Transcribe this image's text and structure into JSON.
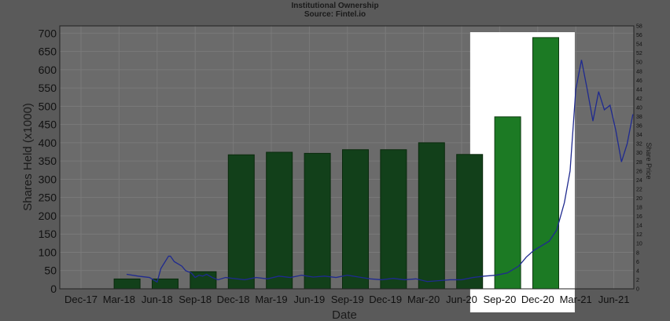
{
  "chart_data": {
    "type": "bar",
    "title": "Institutional Ownership",
    "subtitle": "Source: Fintel.io",
    "xlabel": "Date",
    "ylabel": "Shares Held (x1000)",
    "y2label": "Share Price",
    "ylim": [
      0,
      720
    ],
    "y2lim": [
      0,
      58
    ],
    "yticks": [
      0,
      50,
      100,
      150,
      200,
      250,
      300,
      350,
      400,
      450,
      500,
      550,
      600,
      650,
      700
    ],
    "y2ticks": [
      0,
      2,
      4,
      6,
      8,
      10,
      12,
      14,
      16,
      18,
      20,
      22,
      24,
      26,
      28,
      30,
      32,
      34,
      36,
      38,
      40,
      42,
      44,
      46,
      48,
      50,
      52,
      54,
      56,
      58
    ],
    "xticks": [
      "Dec-17",
      "Mar-18",
      "Jun-18",
      "Sep-18",
      "Dec-18",
      "Mar-19",
      "Jun-19",
      "Sep-19",
      "Dec-19",
      "Mar-20",
      "Jun-20",
      "Sep-20",
      "Dec-20",
      "Mar-21",
      "Jun-21"
    ],
    "bar_positions": [
      1,
      2,
      3,
      4,
      5,
      6,
      7,
      8,
      9,
      10,
      11,
      12,
      13
    ],
    "bar_values": [
      27,
      27,
      47,
      367,
      374,
      371,
      381,
      381,
      400,
      368,
      471,
      688
    ],
    "bar_x": [
      1.5,
      2.5,
      3.5,
      4.5,
      5.5,
      6.5,
      7.5,
      8.5,
      9.5,
      10.5,
      11.5,
      12.5
    ],
    "series": [
      {
        "values_x": [
          1.2,
          1.5,
          1.8,
          2.0,
          2.1,
          2.3,
          2.35,
          2.45,
          2.55,
          2.65,
          2.75,
          2.9,
          3.0,
          3.1,
          3.2,
          3.3,
          3.45,
          3.6,
          3.8,
          4.0,
          4.3,
          4.6,
          4.9,
          5.2,
          5.5,
          5.8,
          6.1,
          6.4,
          6.7,
          7.0,
          7.3,
          7.6,
          7.9,
          8.2,
          8.5,
          8.8,
          9.1,
          9.4,
          9.7,
          10.0,
          10.3,
          10.6,
          10.9,
          11.2,
          11.5,
          11.7,
          11.9,
          12.1,
          12.3,
          12.5,
          12.7,
          12.85,
          13.0,
          13.15,
          13.3,
          13.45,
          13.6,
          13.75,
          13.9,
          14.05,
          14.2,
          14.35,
          14.5
        ],
        "values_y": [
          3.2,
          2.8,
          2.5,
          1.5,
          4.5,
          7.2,
          7.2,
          6.0,
          5.5,
          5.0,
          4.0,
          3.5,
          2.5,
          3.0,
          2.8,
          3.2,
          2.5,
          2.0,
          2.5,
          2.3,
          2.0,
          2.5,
          2.2,
          2.8,
          2.5,
          3.0,
          2.6,
          2.8,
          2.5,
          3.0,
          2.6,
          2.2,
          2.0,
          2.3,
          2.0,
          2.2,
          1.6,
          1.8,
          2.0,
          2.0,
          2.5,
          2.8,
          3.0,
          3.5,
          5.0,
          7.0,
          8.5,
          9.5,
          10.5,
          13.0,
          19.0,
          26.0,
          44.0,
          50.5,
          44.0,
          37.0,
          43.5,
          39.5,
          40.5,
          35.0,
          28.0,
          32.0,
          38.5
        ]
      }
    ],
    "highlight_range": [
      10.7,
      13.8
    ]
  }
}
